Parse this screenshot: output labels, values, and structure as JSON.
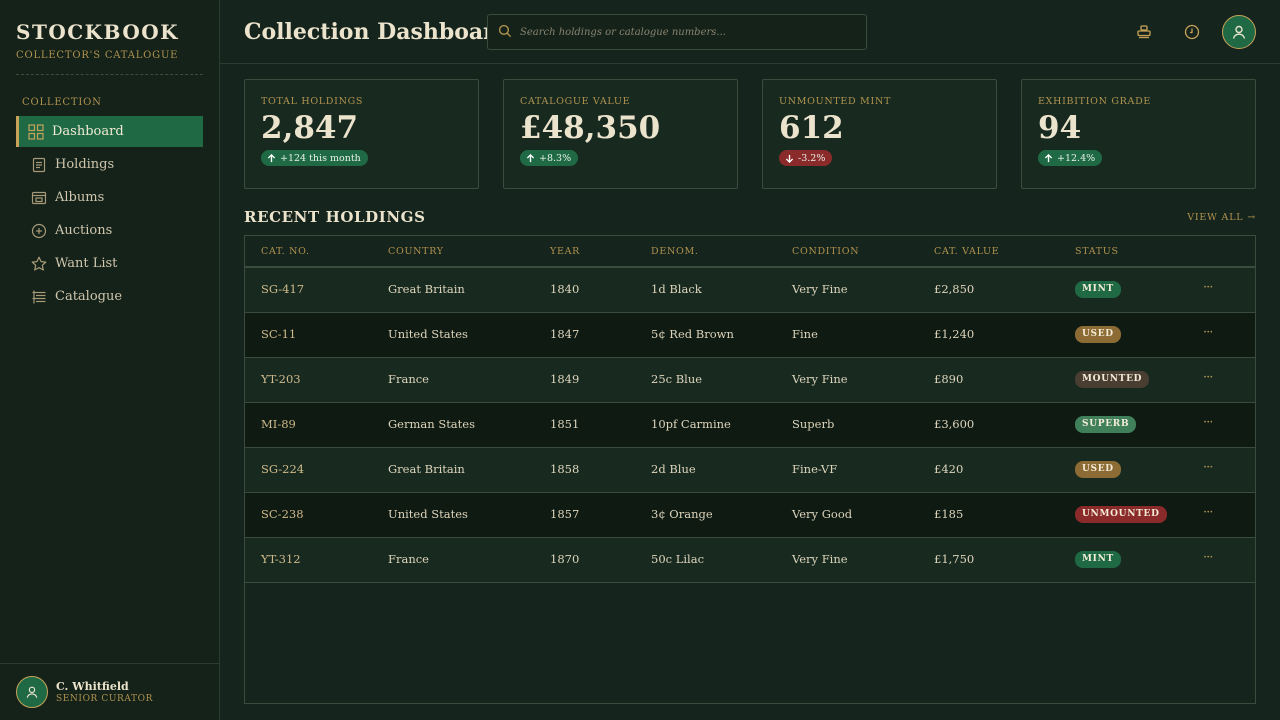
{
  "app": {
    "brand": "STOCKBOOK",
    "brand_sub": "COLLECTOR'S CATALOGUE"
  },
  "sidebar": {
    "section_label": "COLLECTION",
    "items": [
      {
        "label": "Dashboard",
        "icon": "dashboard-grid-icon",
        "active": true
      },
      {
        "label": "Holdings",
        "icon": "document-icon"
      },
      {
        "label": "Albums",
        "icon": "album-icon"
      },
      {
        "label": "Auctions",
        "icon": "plus-circle-icon"
      },
      {
        "label": "Want List",
        "icon": "star-icon"
      },
      {
        "label": "Catalogue",
        "icon": "catalogue-list-icon"
      }
    ],
    "user": {
      "name": "C. Whitfield",
      "role": "SENIOR CURATOR"
    }
  },
  "header": {
    "title": "Collection Dashboard",
    "search_placeholder": "Search holdings or catalogue numbers..."
  },
  "stats": [
    {
      "label": "TOTAL HOLDINGS",
      "value": "2,847",
      "delta": "+124 this month",
      "direction": "up"
    },
    {
      "label": "CATALOGUE VALUE",
      "value": "£48,350",
      "delta": "+8.3%",
      "direction": "up"
    },
    {
      "label": "UNMOUNTED MINT",
      "value": "612",
      "delta": "-3.2%",
      "direction": "down"
    },
    {
      "label": "EXHIBITION GRADE",
      "value": "94",
      "delta": "+12.4%",
      "direction": "up"
    }
  ],
  "recent": {
    "title": "RECENT HOLDINGS",
    "view_all": "VIEW ALL →",
    "columns": [
      "CAT. NO.",
      "COUNTRY",
      "YEAR",
      "DENOM.",
      "CONDITION",
      "CAT. VALUE",
      "STATUS"
    ],
    "rows": [
      {
        "cat": "SG-417",
        "country": "Great Britain",
        "year": "1840",
        "denom": "1d Black",
        "condition": "Very Fine",
        "value": "£2,850",
        "status": "MINT"
      },
      {
        "cat": "SC-11",
        "country": "United States",
        "year": "1847",
        "denom": "5¢ Red Brown",
        "condition": "Fine",
        "value": "£1,240",
        "status": "USED"
      },
      {
        "cat": "YT-203",
        "country": "France",
        "year": "1849",
        "denom": "25c Blue",
        "condition": "Very Fine",
        "value": "£890",
        "status": "MOUNTED"
      },
      {
        "cat": "MI-89",
        "country": "German States",
        "year": "1851",
        "denom": "10pf Carmine",
        "condition": "Superb",
        "value": "£3,600",
        "status": "SUPERB"
      },
      {
        "cat": "SG-224",
        "country": "Great Britain",
        "year": "1858",
        "denom": "2d Blue",
        "condition": "Fine-VF",
        "value": "£420",
        "status": "USED"
      },
      {
        "cat": "SC-238",
        "country": "United States",
        "year": "1857",
        "denom": "3¢ Orange",
        "condition": "Very Good",
        "value": "£185",
        "status": "UNMOUNTED"
      },
      {
        "cat": "YT-312",
        "country": "France",
        "year": "1870",
        "denom": "50c Lilac",
        "condition": "Very Fine",
        "value": "£1,750",
        "status": "MINT"
      }
    ],
    "more_label": "···"
  },
  "colors": {
    "accent_green": "#1f6a45",
    "accent_gold": "#c9a25a",
    "negative_red": "#8a2a2a",
    "status": {
      "MINT": "#1f6a45",
      "USED": "#8d6b35",
      "MOUNTED": "#4a3e33",
      "SUPERB": "#3f7f5a",
      "UNMOUNTED": "#8a2a2a"
    }
  },
  "icons": {
    "search": "search-icon",
    "stamp": "stamp-icon",
    "clock": "clock-icon",
    "user": "user-avatar-icon"
  }
}
